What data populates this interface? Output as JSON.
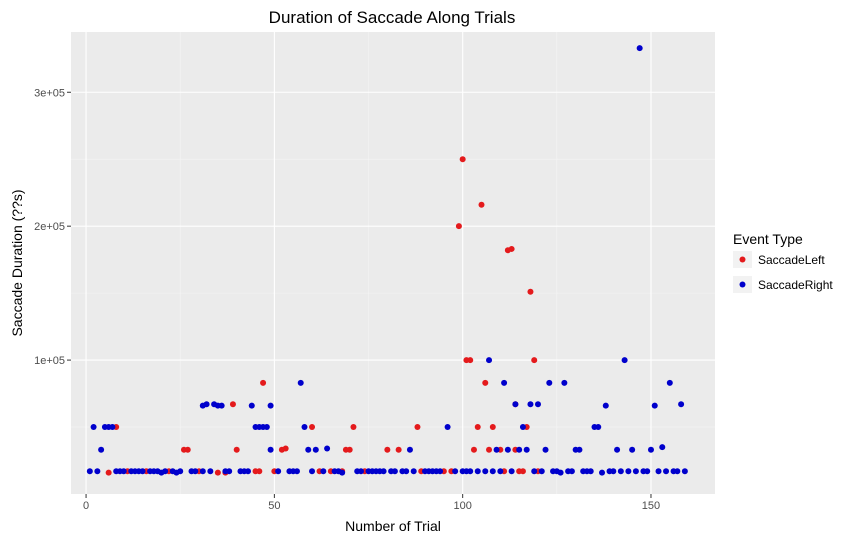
{
  "chart_data": {
    "type": "scatter",
    "title": "Duration of Saccade Along Trials",
    "xlabel": "Number of Trial",
    "ylabel": "Saccade Duration (??s)",
    "xlim": [
      -4,
      167
    ],
    "ylim": [
      0,
      345000
    ],
    "x_ticks": [
      0,
      50,
      100,
      150
    ],
    "x_tick_labels": [
      "0",
      "50",
      "100",
      "150"
    ],
    "y_ticks": [
      100000,
      200000,
      300000
    ],
    "y_tick_labels": [
      "1e+05",
      "2e+05",
      "3e+05"
    ],
    "grid": true,
    "legend": {
      "title": "Event Type",
      "position": "right"
    },
    "series": [
      {
        "name": "SaccadeLeft",
        "color": "#e41a1c",
        "points": [
          [
            6,
            16000
          ],
          [
            8,
            50000
          ],
          [
            11,
            17000
          ],
          [
            16,
            17000
          ],
          [
            22,
            17000
          ],
          [
            26,
            33000
          ],
          [
            27,
            33000
          ],
          [
            30,
            17000
          ],
          [
            35,
            16000
          ],
          [
            37,
            16000
          ],
          [
            39,
            67000
          ],
          [
            40,
            33000
          ],
          [
            45,
            17000
          ],
          [
            46,
            17000
          ],
          [
            47,
            83000
          ],
          [
            50,
            17000
          ],
          [
            52,
            33000
          ],
          [
            53,
            34000
          ],
          [
            60,
            50000
          ],
          [
            62,
            17000
          ],
          [
            65,
            17000
          ],
          [
            68,
            17000
          ],
          [
            69,
            33000
          ],
          [
            70,
            33000
          ],
          [
            71,
            50000
          ],
          [
            74,
            17000
          ],
          [
            80,
            33000
          ],
          [
            83,
            33000
          ],
          [
            88,
            50000
          ],
          [
            89,
            17000
          ],
          [
            95,
            17000
          ],
          [
            97,
            17000
          ],
          [
            99,
            200000
          ],
          [
            100,
            250000
          ],
          [
            101,
            100000
          ],
          [
            102,
            100000
          ],
          [
            103,
            33000
          ],
          [
            104,
            50000
          ],
          [
            105,
            216000
          ],
          [
            106,
            83000
          ],
          [
            107,
            33000
          ],
          [
            108,
            50000
          ],
          [
            110,
            33000
          ],
          [
            111,
            17000
          ],
          [
            112,
            182000
          ],
          [
            113,
            183000
          ],
          [
            114,
            67000
          ],
          [
            114,
            33000
          ],
          [
            115,
            17000
          ],
          [
            116,
            17000
          ],
          [
            117,
            50000
          ],
          [
            118,
            151000
          ],
          [
            119,
            100000
          ],
          [
            120,
            17000
          ]
        ]
      },
      {
        "name": "SaccadeRight",
        "color": "#0000cc",
        "points": [
          [
            1,
            17000
          ],
          [
            2,
            50000
          ],
          [
            3,
            17000
          ],
          [
            4,
            33000
          ],
          [
            5,
            50000
          ],
          [
            6,
            50000
          ],
          [
            7,
            50000
          ],
          [
            8,
            17000
          ],
          [
            9,
            17000
          ],
          [
            10,
            17000
          ],
          [
            12,
            17000
          ],
          [
            13,
            17000
          ],
          [
            14,
            17000
          ],
          [
            15,
            17000
          ],
          [
            17,
            17000
          ],
          [
            18,
            17000
          ],
          [
            19,
            17000
          ],
          [
            20,
            16000
          ],
          [
            21,
            17000
          ],
          [
            23,
            17000
          ],
          [
            24,
            16000
          ],
          [
            25,
            17000
          ],
          [
            28,
            17000
          ],
          [
            29,
            17000
          ],
          [
            31,
            17000
          ],
          [
            31,
            66000
          ],
          [
            32,
            67000
          ],
          [
            33,
            17000
          ],
          [
            34,
            67000
          ],
          [
            35,
            66000
          ],
          [
            36,
            66000
          ],
          [
            37,
            17000
          ],
          [
            38,
            17000
          ],
          [
            41,
            17000
          ],
          [
            42,
            17000
          ],
          [
            43,
            17000
          ],
          [
            44,
            66000
          ],
          [
            45,
            50000
          ],
          [
            46,
            50000
          ],
          [
            47,
            50000
          ],
          [
            48,
            50000
          ],
          [
            49,
            66000
          ],
          [
            49,
            33000
          ],
          [
            51,
            17000
          ],
          [
            54,
            17000
          ],
          [
            55,
            17000
          ],
          [
            56,
            17000
          ],
          [
            57,
            83000
          ],
          [
            58,
            50000
          ],
          [
            59,
            33000
          ],
          [
            60,
            17000
          ],
          [
            61,
            33000
          ],
          [
            63,
            17000
          ],
          [
            64,
            34000
          ],
          [
            66,
            17000
          ],
          [
            67,
            17000
          ],
          [
            68,
            16000
          ],
          [
            72,
            17000
          ],
          [
            73,
            17000
          ],
          [
            75,
            17000
          ],
          [
            76,
            17000
          ],
          [
            77,
            17000
          ],
          [
            78,
            17000
          ],
          [
            79,
            17000
          ],
          [
            81,
            17000
          ],
          [
            82,
            17000
          ],
          [
            84,
            17000
          ],
          [
            85,
            17000
          ],
          [
            86,
            33000
          ],
          [
            87,
            17000
          ],
          [
            90,
            17000
          ],
          [
            91,
            17000
          ],
          [
            92,
            17000
          ],
          [
            93,
            17000
          ],
          [
            94,
            17000
          ],
          [
            96,
            50000
          ],
          [
            98,
            17000
          ],
          [
            100,
            17000
          ],
          [
            101,
            17000
          ],
          [
            102,
            17000
          ],
          [
            104,
            17000
          ],
          [
            106,
            17000
          ],
          [
            107,
            100000
          ],
          [
            108,
            17000
          ],
          [
            109,
            33000
          ],
          [
            110,
            17000
          ],
          [
            111,
            83000
          ],
          [
            112,
            33000
          ],
          [
            113,
            17000
          ],
          [
            114,
            67000
          ],
          [
            115,
            33000
          ],
          [
            116,
            50000
          ],
          [
            117,
            33000
          ],
          [
            118,
            67000
          ],
          [
            119,
            17000
          ],
          [
            120,
            67000
          ],
          [
            121,
            17000
          ],
          [
            122,
            33000
          ],
          [
            123,
            83000
          ],
          [
            124,
            17000
          ],
          [
            125,
            17000
          ],
          [
            126,
            16000
          ],
          [
            127,
            83000
          ],
          [
            128,
            17000
          ],
          [
            129,
            17000
          ],
          [
            130,
            33000
          ],
          [
            131,
            33000
          ],
          [
            132,
            17000
          ],
          [
            133,
            17000
          ],
          [
            134,
            17000
          ],
          [
            135,
            50000
          ],
          [
            136,
            50000
          ],
          [
            137,
            16000
          ],
          [
            138,
            66000
          ],
          [
            139,
            17000
          ],
          [
            140,
            17000
          ],
          [
            141,
            33000
          ],
          [
            142,
            17000
          ],
          [
            143,
            100000
          ],
          [
            144,
            17000
          ],
          [
            145,
            33000
          ],
          [
            146,
            17000
          ],
          [
            147,
            333000
          ],
          [
            148,
            17000
          ],
          [
            149,
            17000
          ],
          [
            150,
            33000
          ],
          [
            151,
            66000
          ],
          [
            152,
            17000
          ],
          [
            153,
            35000
          ],
          [
            154,
            17000
          ],
          [
            155,
            83000
          ],
          [
            156,
            17000
          ],
          [
            157,
            17000
          ],
          [
            158,
            67000
          ],
          [
            159,
            17000
          ]
        ]
      }
    ]
  }
}
